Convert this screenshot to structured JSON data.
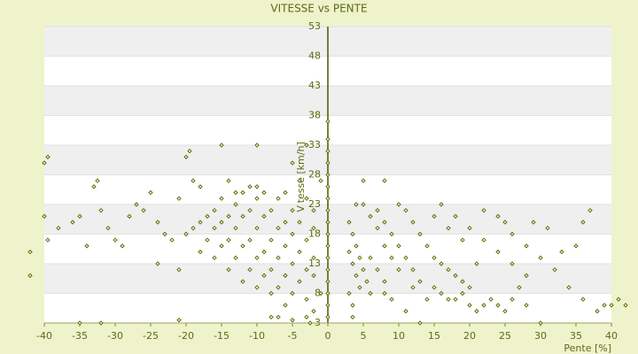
{
  "chart_data": {
    "type": "scatter",
    "title": "VITESSE vs PENTE",
    "xlabel": "Pente [%]",
    "ylabel": "Vitesse [km/h]",
    "color": "#5a6e00",
    "grid": true,
    "xlim": [
      -40,
      40
    ],
    "xticks": [
      -40,
      -35,
      -30,
      -25,
      -20,
      -15,
      -10,
      -5,
      0,
      5,
      10,
      15,
      20,
      25,
      30,
      35,
      40
    ],
    "ylim": [
      3,
      53
    ],
    "yticks": [
      3,
      8,
      13,
      18,
      23,
      28,
      33,
      38,
      43,
      48,
      53
    ],
    "x": [
      -42,
      -42,
      -40,
      -39.5,
      -40,
      -39.5,
      -38,
      -36,
      -35,
      -34,
      -33,
      -32.5,
      -32,
      -31,
      -30,
      -29,
      -28,
      -27,
      -26,
      -25,
      -24,
      -24,
      -23,
      -22,
      -21,
      -21,
      -20,
      -19.5,
      -19,
      -18,
      -20,
      -19,
      -18,
      -17,
      -16,
      -15,
      -14,
      -13,
      -18,
      -17,
      -16,
      -15,
      -14,
      -13,
      -12,
      -11,
      -10,
      -16,
      -15,
      -14,
      -13,
      -12,
      -11,
      -10,
      -9,
      -14,
      -13,
      -12,
      -11,
      -10,
      -9,
      -8,
      -7,
      -6,
      -12,
      -11,
      -10,
      -9,
      -8,
      -7,
      -6,
      -5,
      -10,
      -9,
      -8,
      -7,
      -6,
      -5,
      -4,
      -3,
      -8,
      -7,
      -6,
      -5,
      -4,
      -3,
      -2,
      -6,
      -5,
      -4,
      -3,
      -2,
      -3,
      -2,
      -3,
      -2.5,
      -5,
      -7,
      -8,
      -21,
      -32,
      -35,
      -15,
      -10,
      -5,
      -3,
      -4,
      -2,
      -2,
      -1,
      -1,
      0,
      0,
      0,
      0,
      0,
      0,
      0,
      0,
      0,
      0,
      0,
      0,
      0,
      0,
      0,
      0,
      0,
      3,
      3.5,
      4,
      4.5,
      5,
      5.5,
      6,
      3,
      3.5,
      4,
      4.5,
      3,
      3.5,
      3.5,
      4,
      5,
      6,
      7,
      8,
      9,
      10,
      5,
      7,
      8,
      9,
      10,
      11,
      12,
      13,
      8,
      10,
      11,
      12,
      13,
      14,
      15,
      16,
      17,
      18,
      19,
      20,
      6,
      7,
      8,
      8,
      9,
      11,
      13,
      14,
      15,
      16,
      17,
      18,
      19,
      20,
      21,
      22,
      23,
      24,
      25,
      26,
      27,
      28,
      30,
      16,
      18,
      20,
      22,
      24,
      26,
      28,
      22,
      24,
      26,
      28,
      30,
      32,
      34,
      36,
      37,
      36,
      35,
      38,
      39,
      40,
      41,
      42,
      33,
      31,
      29,
      25,
      21,
      19,
      17,
      15,
      12
    ],
    "values": [
      15,
      11,
      30,
      31,
      21,
      17,
      19,
      20,
      21,
      16,
      26,
      27,
      22,
      19,
      17,
      16,
      21,
      23,
      22,
      25,
      20,
      13,
      18,
      17,
      24,
      12,
      31,
      32,
      27,
      26,
      18,
      19,
      20,
      21,
      22,
      24,
      27,
      25,
      15,
      17,
      19,
      20,
      21,
      23,
      25,
      26,
      26,
      14,
      16,
      17,
      19,
      21,
      22,
      24,
      25,
      12,
      14,
      16,
      17,
      19,
      21,
      22,
      24,
      25,
      10,
      12,
      14,
      15,
      17,
      19,
      20,
      22,
      9,
      11,
      12,
      14,
      16,
      18,
      20,
      24,
      8,
      9,
      11,
      13,
      15,
      17,
      19,
      6,
      8,
      10,
      12,
      14,
      7,
      5,
      4,
      3,
      3.5,
      4,
      4,
      3.5,
      3,
      3,
      33,
      33,
      30,
      33,
      27,
      22,
      11,
      27,
      8,
      4,
      6,
      8,
      10,
      12,
      14,
      16,
      18,
      20,
      22,
      24,
      26,
      28,
      30,
      32,
      34,
      37,
      20,
      18,
      16,
      14,
      12,
      10,
      8,
      15,
      13,
      11,
      9,
      8,
      6,
      4,
      23,
      23,
      21,
      19,
      16,
      14,
      12,
      27,
      22,
      20,
      18,
      16,
      14,
      12,
      10,
      27,
      23,
      22,
      20,
      18,
      16,
      14,
      13,
      12,
      11,
      10,
      9,
      14,
      12,
      10,
      8,
      7,
      5,
      3,
      7,
      9,
      8,
      7,
      7,
      8,
      6,
      5,
      6,
      7,
      6,
      5,
      7,
      9,
      6,
      3,
      23,
      21,
      19,
      17,
      15,
      13,
      11,
      22,
      21,
      18,
      16,
      14,
      12,
      9,
      7,
      22,
      20,
      16,
      5,
      6,
      6,
      7,
      6,
      15,
      19,
      20,
      20,
      13,
      17,
      19,
      21,
      9
    ]
  }
}
